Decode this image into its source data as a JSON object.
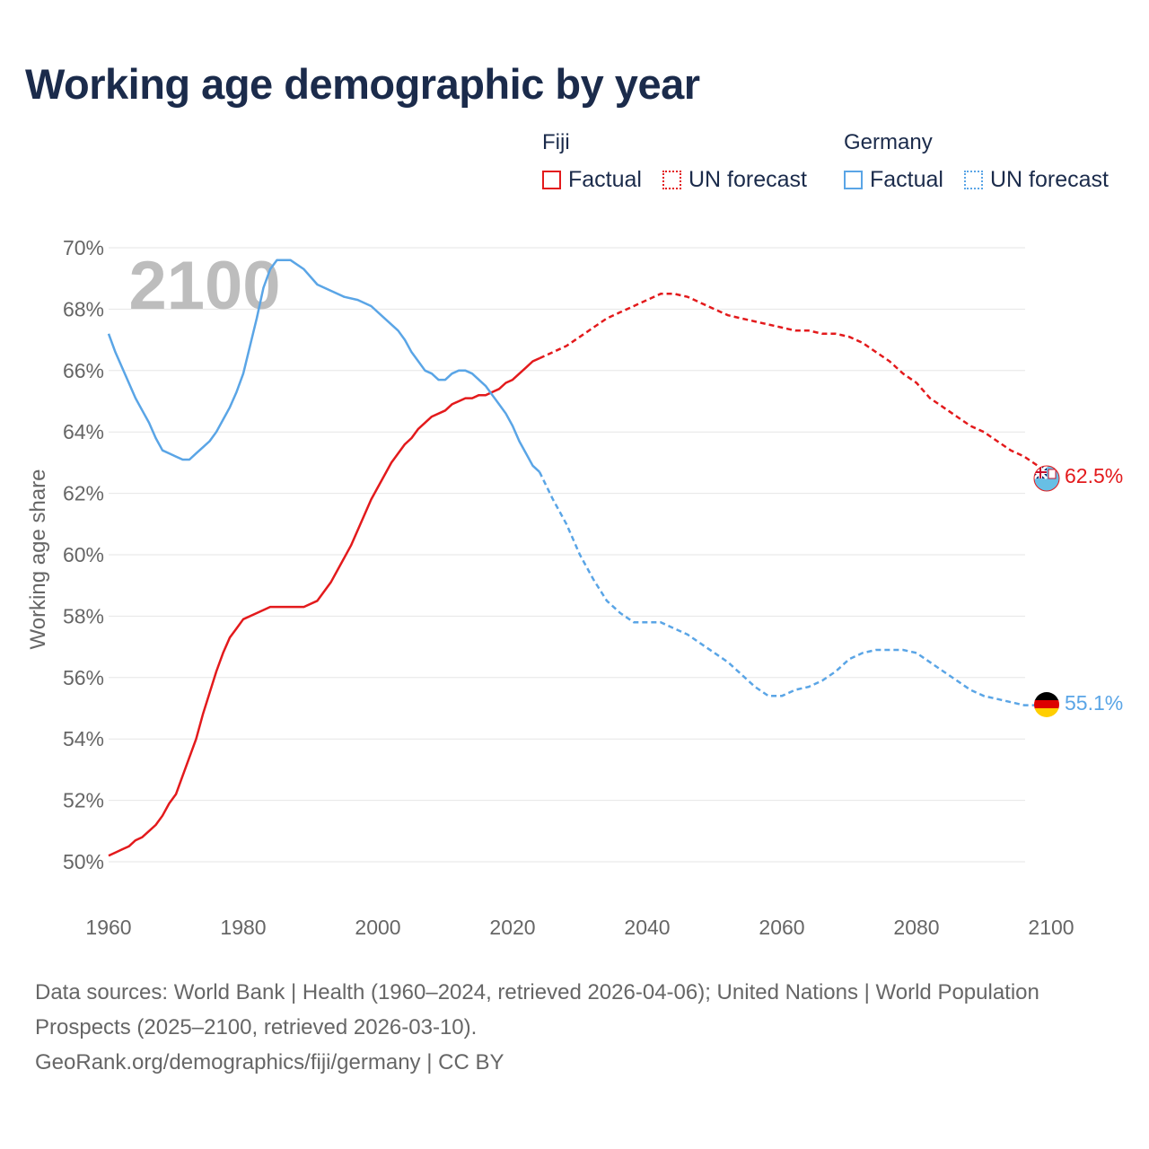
{
  "title": "Working age demographic by year",
  "legend": {
    "groups": [
      {
        "name": "Fiji",
        "color": "#e31a1c",
        "factual": "Factual",
        "forecast": "UN forecast"
      },
      {
        "name": "Germany",
        "color": "#5aa5e6",
        "factual": "Factual",
        "forecast": "UN forecast"
      }
    ]
  },
  "year_watermark": "2100",
  "footer": {
    "sources": "Data sources: World Bank | Health (1960–2024, retrieved 2026-04-06); United Nations | World Population Prospects (2025–2100, retrieved 2026-03-10).",
    "credit": "GeoRank.org/demographics/fiji/germany | CC BY"
  },
  "chart_data": {
    "type": "line",
    "ylabel": "Working age share",
    "xlabel": "",
    "xlim": [
      1960,
      2100
    ],
    "ylim": [
      50,
      70
    ],
    "x_ticks": [
      1960,
      1980,
      2000,
      2020,
      2040,
      2060,
      2080,
      2100
    ],
    "y_ticks": [
      50,
      52,
      54,
      56,
      58,
      60,
      62,
      64,
      66,
      68,
      70
    ],
    "y_tick_labels": [
      "50%",
      "52%",
      "54%",
      "56%",
      "58%",
      "60%",
      "62%",
      "64%",
      "66%",
      "68%",
      "70%"
    ],
    "factual_end": 2024,
    "series": [
      {
        "name": "Fiji",
        "color": "#e31a1c",
        "end_label": "62.5%",
        "flag": "fiji-flag",
        "points": [
          [
            1960,
            50.2
          ],
          [
            1962,
            50.4
          ],
          [
            1963,
            50.5
          ],
          [
            1964,
            50.7
          ],
          [
            1965,
            50.8
          ],
          [
            1966,
            51.0
          ],
          [
            1967,
            51.2
          ],
          [
            1968,
            51.5
          ],
          [
            1969,
            51.9
          ],
          [
            1970,
            52.2
          ],
          [
            1971,
            52.8
          ],
          [
            1972,
            53.4
          ],
          [
            1973,
            54.0
          ],
          [
            1974,
            54.8
          ],
          [
            1975,
            55.5
          ],
          [
            1976,
            56.2
          ],
          [
            1977,
            56.8
          ],
          [
            1978,
            57.3
          ],
          [
            1979,
            57.6
          ],
          [
            1980,
            57.9
          ],
          [
            1982,
            58.1
          ],
          [
            1984,
            58.3
          ],
          [
            1986,
            58.3
          ],
          [
            1989,
            58.3
          ],
          [
            1991,
            58.5
          ],
          [
            1993,
            59.1
          ],
          [
            1996,
            60.3
          ],
          [
            1999,
            61.8
          ],
          [
            2002,
            63.0
          ],
          [
            2004,
            63.6
          ],
          [
            2005,
            63.8
          ],
          [
            2006,
            64.1
          ],
          [
            2008,
            64.5
          ],
          [
            2010,
            64.7
          ],
          [
            2011,
            64.9
          ],
          [
            2013,
            65.1
          ],
          [
            2014,
            65.1
          ],
          [
            2015,
            65.2
          ],
          [
            2016,
            65.2
          ],
          [
            2017,
            65.3
          ],
          [
            2018,
            65.4
          ],
          [
            2019,
            65.6
          ],
          [
            2020,
            65.7
          ],
          [
            2022,
            66.1
          ],
          [
            2023,
            66.3
          ],
          [
            2024,
            66.4
          ],
          [
            2025,
            66.5
          ],
          [
            2028,
            66.8
          ],
          [
            2030,
            67.1
          ],
          [
            2032,
            67.4
          ],
          [
            2034,
            67.7
          ],
          [
            2036,
            67.9
          ],
          [
            2038,
            68.1
          ],
          [
            2040,
            68.3
          ],
          [
            2042,
            68.5
          ],
          [
            2044,
            68.5
          ],
          [
            2046,
            68.4
          ],
          [
            2048,
            68.2
          ],
          [
            2050,
            68.0
          ],
          [
            2052,
            67.8
          ],
          [
            2054,
            67.7
          ],
          [
            2056,
            67.6
          ],
          [
            2058,
            67.5
          ],
          [
            2060,
            67.4
          ],
          [
            2062,
            67.3
          ],
          [
            2064,
            67.3
          ],
          [
            2066,
            67.2
          ],
          [
            2068,
            67.2
          ],
          [
            2070,
            67.1
          ],
          [
            2072,
            66.9
          ],
          [
            2074,
            66.6
          ],
          [
            2076,
            66.3
          ],
          [
            2078,
            65.9
          ],
          [
            2080,
            65.6
          ],
          [
            2082,
            65.1
          ],
          [
            2084,
            64.8
          ],
          [
            2086,
            64.5
          ],
          [
            2088,
            64.2
          ],
          [
            2090,
            64.0
          ],
          [
            2092,
            63.7
          ],
          [
            2094,
            63.4
          ],
          [
            2096,
            63.2
          ],
          [
            2098,
            62.9
          ],
          [
            2100,
            62.5
          ]
        ]
      },
      {
        "name": "Germany",
        "color": "#5aa5e6",
        "end_label": "55.1%",
        "flag": "germany-flag",
        "points": [
          [
            1960,
            67.2
          ],
          [
            1961,
            66.6
          ],
          [
            1962,
            66.1
          ],
          [
            1963,
            65.6
          ],
          [
            1964,
            65.1
          ],
          [
            1965,
            64.7
          ],
          [
            1966,
            64.3
          ],
          [
            1967,
            63.8
          ],
          [
            1968,
            63.4
          ],
          [
            1969,
            63.3
          ],
          [
            1970,
            63.2
          ],
          [
            1971,
            63.1
          ],
          [
            1972,
            63.1
          ],
          [
            1973,
            63.3
          ],
          [
            1974,
            63.5
          ],
          [
            1975,
            63.7
          ],
          [
            1976,
            64.0
          ],
          [
            1977,
            64.4
          ],
          [
            1978,
            64.8
          ],
          [
            1979,
            65.3
          ],
          [
            1980,
            65.9
          ],
          [
            1981,
            66.8
          ],
          [
            1982,
            67.7
          ],
          [
            1983,
            68.7
          ],
          [
            1984,
            69.3
          ],
          [
            1985,
            69.6
          ],
          [
            1987,
            69.6
          ],
          [
            1989,
            69.3
          ],
          [
            1991,
            68.8
          ],
          [
            1993,
            68.6
          ],
          [
            1995,
            68.4
          ],
          [
            1997,
            68.3
          ],
          [
            1999,
            68.1
          ],
          [
            2001,
            67.7
          ],
          [
            2003,
            67.3
          ],
          [
            2004,
            67.0
          ],
          [
            2005,
            66.6
          ],
          [
            2006,
            66.3
          ],
          [
            2007,
            66.0
          ],
          [
            2008,
            65.9
          ],
          [
            2009,
            65.7
          ],
          [
            2010,
            65.7
          ],
          [
            2011,
            65.9
          ],
          [
            2012,
            66.0
          ],
          [
            2013,
            66.0
          ],
          [
            2014,
            65.9
          ],
          [
            2015,
            65.7
          ],
          [
            2016,
            65.5
          ],
          [
            2017,
            65.2
          ],
          [
            2018,
            64.9
          ],
          [
            2019,
            64.6
          ],
          [
            2020,
            64.2
          ],
          [
            2021,
            63.7
          ],
          [
            2022,
            63.3
          ],
          [
            2023,
            62.9
          ],
          [
            2024,
            62.7
          ],
          [
            2026,
            61.8
          ],
          [
            2028,
            61.0
          ],
          [
            2030,
            60.0
          ],
          [
            2032,
            59.2
          ],
          [
            2034,
            58.5
          ],
          [
            2036,
            58.1
          ],
          [
            2038,
            57.8
          ],
          [
            2040,
            57.8
          ],
          [
            2042,
            57.8
          ],
          [
            2044,
            57.6
          ],
          [
            2046,
            57.4
          ],
          [
            2048,
            57.1
          ],
          [
            2050,
            56.8
          ],
          [
            2052,
            56.5
          ],
          [
            2054,
            56.1
          ],
          [
            2056,
            55.7
          ],
          [
            2058,
            55.4
          ],
          [
            2060,
            55.4
          ],
          [
            2062,
            55.6
          ],
          [
            2064,
            55.7
          ],
          [
            2066,
            55.9
          ],
          [
            2068,
            56.2
          ],
          [
            2070,
            56.6
          ],
          [
            2072,
            56.8
          ],
          [
            2074,
            56.9
          ],
          [
            2076,
            56.9
          ],
          [
            2078,
            56.9
          ],
          [
            2080,
            56.8
          ],
          [
            2082,
            56.5
          ],
          [
            2084,
            56.2
          ],
          [
            2086,
            55.9
          ],
          [
            2088,
            55.6
          ],
          [
            2090,
            55.4
          ],
          [
            2092,
            55.3
          ],
          [
            2094,
            55.2
          ],
          [
            2096,
            55.1
          ],
          [
            2098,
            55.1
          ],
          [
            2100,
            55.1
          ]
        ]
      }
    ]
  }
}
